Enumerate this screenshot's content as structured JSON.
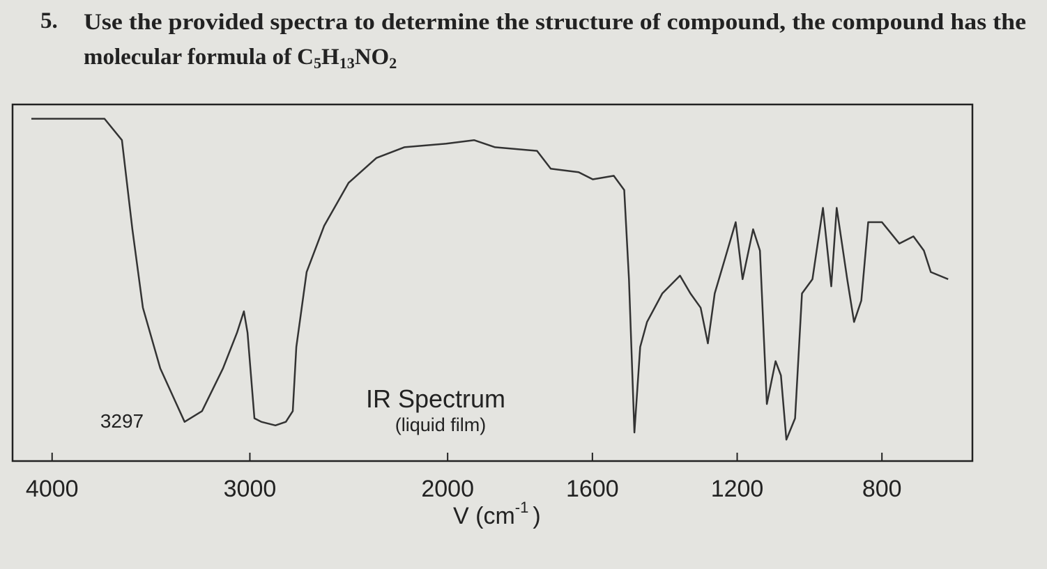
{
  "question": {
    "number": "5.",
    "line1": "Use the provided spectra to determine the structure of compound, the compound has the",
    "line2": "molecular formula of",
    "formula": [
      {
        "text": "C"
      },
      {
        "text": "5",
        "sub": true
      },
      {
        "text": "H"
      },
      {
        "text": "13",
        "sub": true
      },
      {
        "text": "N"
      },
      {
        "text": "O"
      },
      {
        "text": "2",
        "sub": true
      }
    ]
  },
  "chart_data": {
    "type": "line",
    "xlabel": {
      "base": "V (cm",
      "superscript": "-1",
      "close": ")"
    },
    "annotations": [
      {
        "text": "3297"
      },
      {
        "text": "IR Spectrum"
      },
      {
        "text": "(liquid film)"
      }
    ],
    "xlim": [
      4200,
      550
    ],
    "xbreak": 2000,
    "xticks": [
      4000,
      3000,
      2000,
      1600,
      1200,
      800
    ],
    "ylim": [
      0,
      100
    ],
    "color": "#333333",
    "series": [
      {
        "x": [
          4105,
          3735,
          3647,
          3594,
          3541,
          3453,
          3330,
          3242,
          3136,
          3065,
          3030,
          3012,
          2977,
          2942,
          2871,
          2818,
          2783,
          2765,
          2713,
          2624,
          2501,
          2360,
          2219,
          2007,
          1927,
          1869,
          1753,
          1715,
          1638,
          1599,
          1541,
          1512,
          1499,
          1484,
          1468,
          1449,
          1407,
          1358,
          1329,
          1301,
          1281,
          1262,
          1233,
          1204,
          1185,
          1156,
          1137,
          1118,
          1094,
          1079,
          1064,
          1040,
          1021,
          992,
          963,
          940,
          925,
          896,
          877,
          857,
          838,
          800,
          752,
          713,
          684,
          665,
          617
        ],
        "values": [
          96,
          96,
          90,
          65,
          43,
          26,
          11,
          14,
          26,
          36,
          42,
          36,
          12,
          11,
          10,
          11,
          14,
          32,
          53,
          66,
          78,
          85,
          88,
          89,
          90,
          88,
          87,
          82,
          81,
          79,
          80,
          76,
          51,
          8,
          32,
          39,
          47,
          52,
          47,
          43,
          33,
          47,
          57,
          67,
          51,
          65,
          59,
          16,
          28,
          24,
          6,
          12,
          47,
          51,
          71,
          49,
          71,
          51,
          39,
          45,
          67,
          67,
          61,
          63,
          59,
          53,
          51
        ]
      }
    ]
  }
}
